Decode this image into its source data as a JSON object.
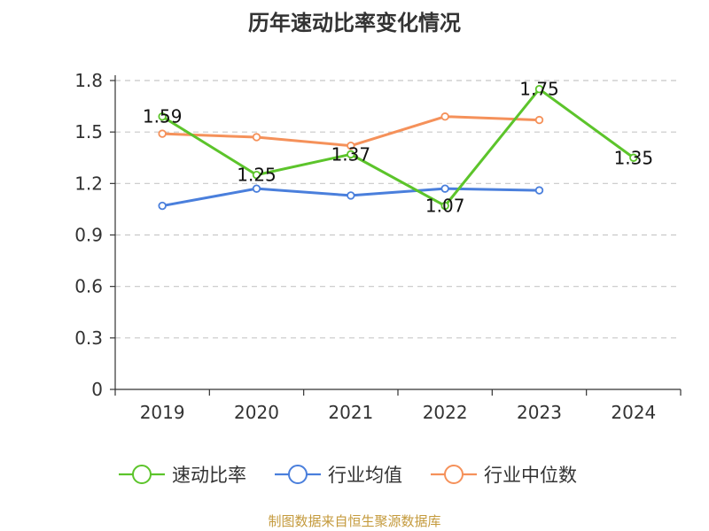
{
  "title": "历年速动比率变化情况",
  "source": "制图数据来自恒生聚源数据库",
  "colors": {
    "quick_ratio": "#5cc42b",
    "industry_avg": "#4a7fdc",
    "industry_median": "#f5915a"
  },
  "chart_data": {
    "type": "line",
    "title": "历年速动比率变化情况",
    "x": [
      "2019",
      "2020",
      "2021",
      "2022",
      "2023",
      "2024"
    ],
    "ylim": [
      0,
      1.8
    ],
    "yticks": [
      "0",
      "0.3",
      "0.6",
      "0.9",
      "1.2",
      "1.5",
      "1.8"
    ],
    "grid": true,
    "legend_position": "bottom",
    "series": [
      {
        "name": "速动比率",
        "key": "quick_ratio",
        "values": [
          1.59,
          1.25,
          1.37,
          1.07,
          1.75,
          1.35
        ],
        "labels": [
          "1.59",
          "1.25",
          "1.37",
          "1.07",
          "1.75",
          "1.35"
        ]
      },
      {
        "name": "行业均值",
        "key": "industry_avg",
        "values": [
          1.07,
          1.17,
          1.13,
          1.17,
          1.16,
          null
        ]
      },
      {
        "name": "行业中位数",
        "key": "industry_median",
        "values": [
          1.49,
          1.47,
          1.42,
          1.59,
          1.57,
          null
        ]
      }
    ]
  }
}
